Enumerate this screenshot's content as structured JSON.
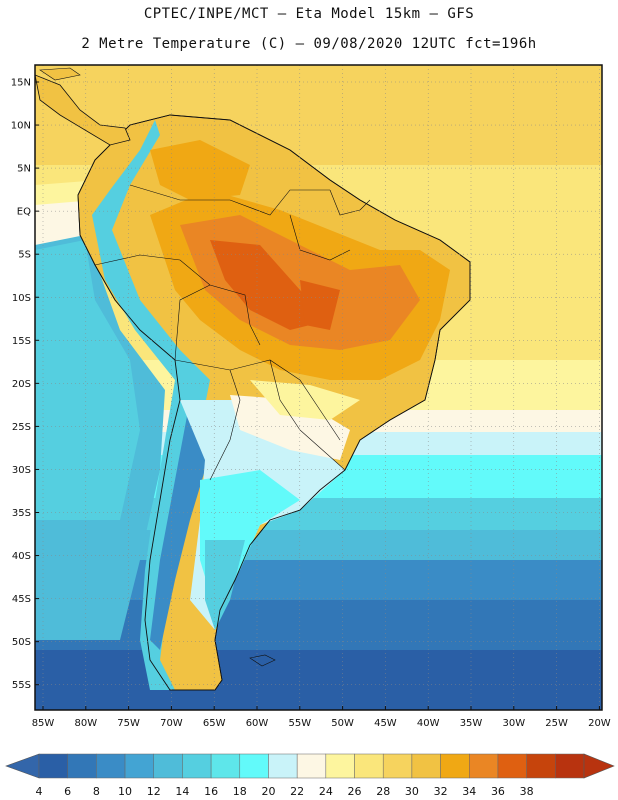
{
  "header": {
    "line1": "CPTEC/INPE/MCT –  Eta Model 15km – GFS",
    "line2": "2 Metre Temperature (C) – 09/08/2020 12UTC fct=196h"
  },
  "map": {
    "variable": "2 Metre Temperature",
    "units": "C",
    "region": "South America",
    "lat_labels": [
      "15N",
      "10N",
      "5N",
      "EQ",
      "5S",
      "10S",
      "15S",
      "20S",
      "25S",
      "30S",
      "35S",
      "40S",
      "45S",
      "50S",
      "55S"
    ],
    "lon_labels": [
      "85W",
      "80W",
      "75W",
      "70W",
      "65W",
      "60W",
      "55W",
      "50W",
      "45W",
      "40W",
      "35W",
      "30W",
      "25W",
      "20W"
    ]
  },
  "colorbar": {
    "ticks": [
      "4",
      "6",
      "8",
      "10",
      "12",
      "14",
      "16",
      "18",
      "20",
      "22",
      "24",
      "26",
      "28",
      "30",
      "32",
      "34",
      "36",
      "38"
    ],
    "colors": [
      "#2a5fa6",
      "#3277b7",
      "#3a8cc6",
      "#43a4d3",
      "#4fbcd9",
      "#55cfe0",
      "#5ee6ea",
      "#62fafa",
      "#c9f3f9",
      "#fdf7e4",
      "#fdf59e",
      "#fae67b",
      "#f6d35e",
      "#f1c243",
      "#f0a814",
      "#ea8624",
      "#df6011",
      "#c6440c",
      "#b8330f"
    ],
    "under_color": "#3366aa",
    "over_color": "#b8330f"
  }
}
